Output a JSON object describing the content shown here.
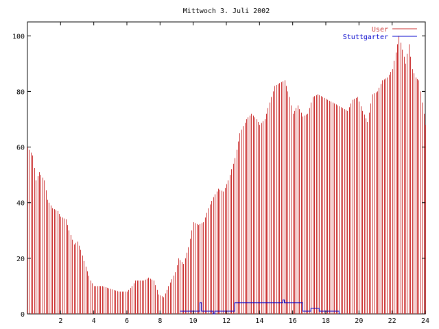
{
  "chart_data": {
    "type": "bar",
    "title": "Mittwoch 3. Juli 2002",
    "xlabel": "",
    "ylabel": "",
    "xlim": [
      0,
      24
    ],
    "ylim": [
      0,
      105
    ],
    "x_ticks": [
      {
        "value": 2,
        "label": "2"
      },
      {
        "value": 4,
        "label": "4"
      },
      {
        "value": 6,
        "label": "6"
      },
      {
        "value": 8,
        "label": "8"
      },
      {
        "value": 10,
        "label": "10"
      },
      {
        "value": 12,
        "label": "12"
      },
      {
        "value": 14,
        "label": "14"
      },
      {
        "value": 16,
        "label": "16"
      },
      {
        "value": 18,
        "label": "18"
      },
      {
        "value": 20,
        "label": "20"
      },
      {
        "value": 22,
        "label": "22"
      },
      {
        "value": 24,
        "label": "24"
      }
    ],
    "y_ticks": [
      {
        "value": 0,
        "label": "0"
      },
      {
        "value": 20,
        "label": "20"
      },
      {
        "value": 40,
        "label": "40"
      },
      {
        "value": 60,
        "label": "60"
      },
      {
        "value": 80,
        "label": "80"
      },
      {
        "value": 100,
        "label": "100"
      }
    ],
    "grid": false,
    "legend_position": "top-right",
    "series": [
      {
        "name": "User",
        "type": "impulses",
        "color": "#cc3333",
        "x_start": 0,
        "x_step": 0.1,
        "anchors": [
          [
            0,
            60
          ],
          [
            0.3,
            57
          ],
          [
            0.5,
            48
          ],
          [
            0.7,
            51
          ],
          [
            1,
            48
          ],
          [
            1.2,
            41
          ],
          [
            1.5,
            38
          ],
          [
            1.8,
            37
          ],
          [
            2,
            35
          ],
          [
            2.3,
            34
          ],
          [
            2.5,
            30
          ],
          [
            2.8,
            25
          ],
          [
            3,
            26
          ],
          [
            3.2,
            23
          ],
          [
            3.5,
            17
          ],
          [
            3.8,
            12
          ],
          [
            4,
            10
          ],
          [
            4.5,
            10
          ],
          [
            5,
            9
          ],
          [
            5.5,
            8
          ],
          [
            6,
            8
          ],
          [
            6.3,
            10
          ],
          [
            6.5,
            12
          ],
          [
            7,
            12
          ],
          [
            7.3,
            13
          ],
          [
            7.6,
            12
          ],
          [
            7.9,
            7
          ],
          [
            8.2,
            6
          ],
          [
            8.5,
            10
          ],
          [
            8.9,
            15
          ],
          [
            9.1,
            20
          ],
          [
            9.4,
            18
          ],
          [
            9.7,
            24
          ],
          [
            10,
            33
          ],
          [
            10.3,
            32
          ],
          [
            10.6,
            33
          ],
          [
            10.9,
            38
          ],
          [
            11.2,
            42
          ],
          [
            11.5,
            45
          ],
          [
            11.8,
            44
          ],
          [
            12.1,
            48
          ],
          [
            12.5,
            56
          ],
          [
            12.8,
            65
          ],
          [
            13.2,
            70
          ],
          [
            13.5,
            72
          ],
          [
            13.8,
            70
          ],
          [
            14,
            68
          ],
          [
            14.3,
            70
          ],
          [
            14.6,
            76
          ],
          [
            14.9,
            82
          ],
          [
            15.2,
            83
          ],
          [
            15.5,
            84
          ],
          [
            15.8,
            78
          ],
          [
            16,
            72
          ],
          [
            16.3,
            75
          ],
          [
            16.6,
            71
          ],
          [
            16.9,
            72
          ],
          [
            17.2,
            78
          ],
          [
            17.5,
            79
          ],
          [
            17.8,
            78
          ],
          [
            18.1,
            77
          ],
          [
            18.4,
            76
          ],
          [
            18.7,
            75
          ],
          [
            19,
            74
          ],
          [
            19.3,
            73
          ],
          [
            19.6,
            77
          ],
          [
            19.9,
            78
          ],
          [
            20.2,
            73
          ],
          [
            20.5,
            69
          ],
          [
            20.8,
            79
          ],
          [
            21.1,
            80
          ],
          [
            21.4,
            84
          ],
          [
            21.7,
            85
          ],
          [
            22,
            88
          ],
          [
            22.2,
            94
          ],
          [
            22.4,
            100
          ],
          [
            22.6,
            95
          ],
          [
            22.8,
            90
          ],
          [
            23,
            97
          ],
          [
            23.2,
            88
          ],
          [
            23.4,
            85
          ],
          [
            23.6,
            84
          ],
          [
            23.8,
            76
          ],
          [
            24,
            68
          ]
        ]
      },
      {
        "name": "Stuttgarter",
        "type": "steps",
        "color": "#0000cc",
        "points": [
          [
            9.2,
            1
          ],
          [
            10.2,
            1
          ],
          [
            10.4,
            4
          ],
          [
            10.5,
            1
          ],
          [
            11.2,
            0
          ],
          [
            11.3,
            1
          ],
          [
            12.5,
            1
          ],
          [
            12.5,
            4
          ],
          [
            15.3,
            4
          ],
          [
            15.4,
            5
          ],
          [
            15.5,
            4
          ],
          [
            16.6,
            4
          ],
          [
            16.6,
            1
          ],
          [
            17,
            1
          ],
          [
            17.1,
            2
          ],
          [
            17.5,
            2
          ],
          [
            17.6,
            1
          ],
          [
            18.8,
            1
          ],
          [
            18.8,
            0
          ]
        ]
      }
    ]
  }
}
